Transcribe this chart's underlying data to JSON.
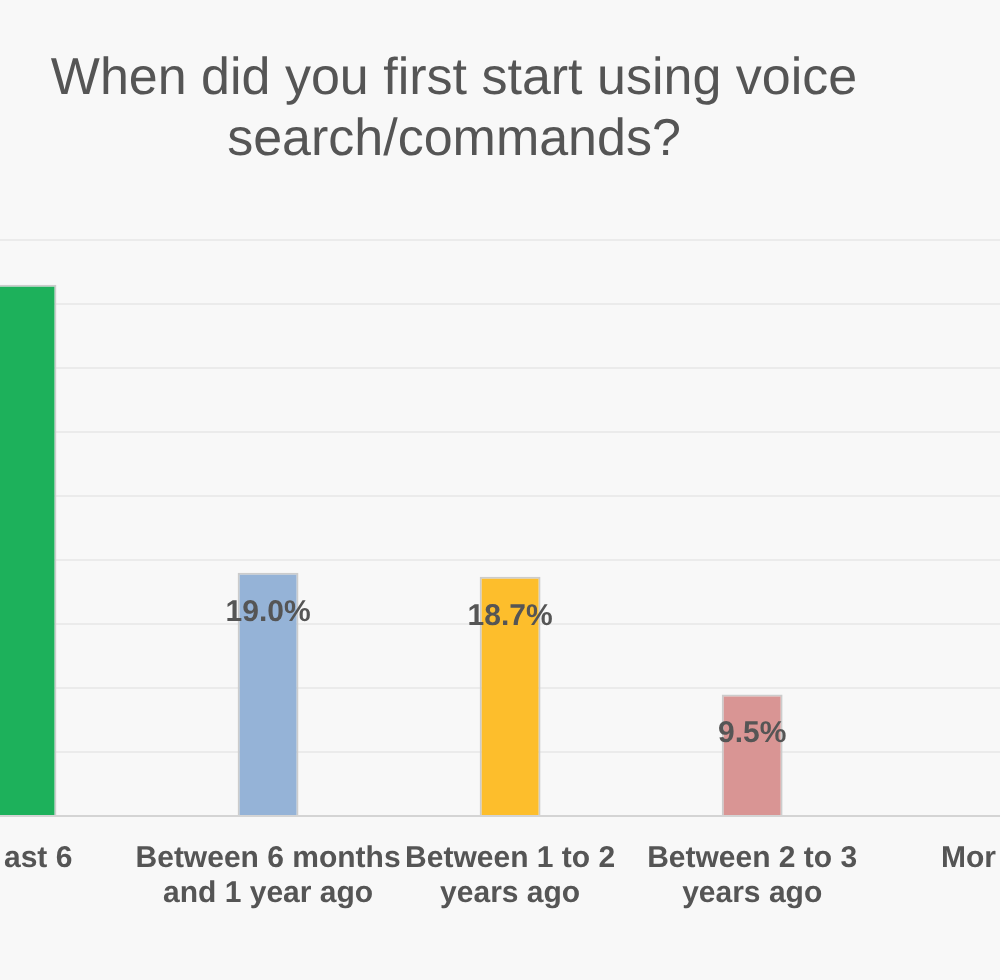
{
  "chart_data": {
    "type": "bar",
    "title": "When did you first start using voice search/commands?",
    "categories": [
      "ast 6",
      "Between 6 months and 1 year ago",
      "Between 1 to 2 years ago",
      "Between 2 to 3 years ago",
      "Mor"
    ],
    "values": [
      41.5,
      19.0,
      18.7,
      9.5,
      null
    ],
    "colors": [
      "#1db15b",
      "#95b3d7",
      "#fdbe2c",
      "#d99594",
      null
    ],
    "value_labels": [
      null,
      "19.0%",
      "18.7%",
      "9.5%",
      null
    ],
    "ylim": [
      0,
      45
    ],
    "yticks": [
      {
        "value": 0,
        "label": null
      },
      {
        "value": 5,
        "label": null
      },
      {
        "value": 10,
        "label": null
      },
      {
        "value": 15,
        "label": null
      },
      {
        "value": 20,
        "label": null
      },
      {
        "value": 25,
        "label": null
      },
      {
        "value": 30,
        "label": null
      },
      {
        "value": 35,
        "label": null
      },
      {
        "value": 40,
        "label": null
      },
      {
        "value": 45,
        "label": null
      }
    ],
    "grid": "y",
    "tick_labels": "x"
  }
}
